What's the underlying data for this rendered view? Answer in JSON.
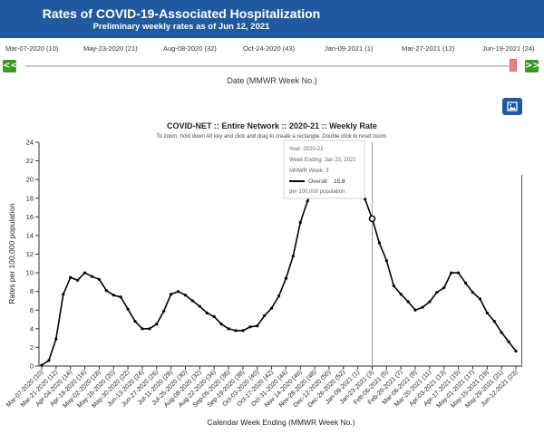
{
  "header": {
    "title": "Rates of COVID-19-Associated Hospitalization",
    "subtitle": "Preliminary weekly rates as of Jun 12, 2021"
  },
  "timeline": {
    "labels": [
      "Mar-07-2020 (10)",
      "May-23-2020 (21)",
      "Aug-08-2020 (32)",
      "Oct-24-2020 (43)",
      "Jan-09-2021 (1)",
      "Mar-27-2021 (12)",
      "Jun-19-2021 (24)"
    ],
    "prev_label": "<<",
    "next_label": ">>",
    "axis_title": "Date (MMWR Week No.)"
  },
  "image_button": {
    "icon": "image-icon"
  },
  "chart_data": {
    "type": "line",
    "title": "COVID-NET :: Entire Network :: 2020-21 :: Weekly Rate",
    "subtitle": "To zoom, hold down Alt key and click and drag to create a rectangle. Double click to reset zoom.",
    "xlabel": "Calendar Week Ending (MMWR Week No.)",
    "ylabel": "Rates per 100,000 population",
    "ylim": [
      0,
      24
    ],
    "yticks": [
      0,
      2,
      4,
      6,
      8,
      10,
      12,
      14,
      16,
      18,
      20,
      22,
      24
    ],
    "x": [
      "Mar-07-2020 (10)",
      "Mar-14-2020 (11)",
      "Mar-21-2020 (12)",
      "Mar-28-2020 (13)",
      "Apr-04-2020 (14)",
      "Apr-11-2020 (15)",
      "Apr-18-2020 (16)",
      "Apr-25-2020 (17)",
      "May-02-2020 (18)",
      "May-09-2020 (19)",
      "May-16-2020 (20)",
      "May-23-2020 (21)",
      "May-30-2020 (22)",
      "Jun-06-2020 (23)",
      "Jun-13-2020 (24)",
      "Jun-20-2020 (25)",
      "Jun-27-2020 (26)",
      "Jul-04-2020 (27)",
      "Jul-11-2020 (28)",
      "Jul-18-2020 (29)",
      "Jul-25-2020 (30)",
      "Aug-01-2020 (31)",
      "Aug-08-2020 (32)",
      "Aug-15-2020 (33)",
      "Aug-22-2020 (34)",
      "Aug-29-2020 (35)",
      "Sep-05-2020 (36)",
      "Sep-12-2020 (37)",
      "Sep-19-2020 (38)",
      "Sep-26-2020 (39)",
      "Oct-03-2020 (40)",
      "Oct-10-2020 (41)",
      "Oct-17-2020 (42)",
      "Oct-24-2020 (43)",
      "Oct-31-2020 (44)",
      "Nov-07-2020 (45)",
      "Nov-14-2020 (46)",
      "Nov-21-2020 (47)",
      "Nov-28-2020 (48)",
      "Dec-05-2020 (49)",
      "Dec-12-2020 (50)",
      "Dec-19-2020 (51)",
      "Dec-26-2020 (52)",
      "Jan-02-2021 (53)",
      "Jan-09-2021 (1)",
      "Jan-16-2021 (2)",
      "Jan-23-2021 (3)",
      "Jan-30-2021 (4)",
      "Feb-06-2021 (5)",
      "Feb-13-2021 (6)",
      "Feb-20-2021 (7)",
      "Feb-27-2021 (8)",
      "Mar-06-2021 (9)",
      "Mar-13-2021 (10)",
      "Mar-20-2021 (11)",
      "Mar-27-2021 (12)",
      "Apr-03-2021 (13)",
      "Apr-10-2021 (14)",
      "Apr-17-2021 (15)",
      "Apr-24-2021 (16)",
      "May-01-2021 (17)",
      "May-08-2021 (18)",
      "May-15-2021 (19)",
      "May-22-2021 (20)",
      "May-29-2021 (21)",
      "Jun-05-2021 (22)",
      "Jun-12-2021 (23)"
    ],
    "tick_labels": [
      "Mar-07-2020 (10)",
      "Mar-21-2020 (12)",
      "Apr-04-2020 (14)",
      "Apr-18-2020 (16)",
      "May-02-2020 (18)",
      "May-16-2020 (20)",
      "May-30-2020 (22)",
      "Jun-13-2020 (24)",
      "Jun-27-2020 (26)",
      "Jul-11-2020 (28)",
      "Jul-25-2020 (30)",
      "Aug-08-2020 (32)",
      "Aug-22-2020 (34)",
      "Sep-05-2020 (36)",
      "Sep-19-2020 (38)",
      "Oct-03-2020 (40)",
      "Oct-17-2020 (42)",
      "Oct-31-2020 (44)",
      "Nov-14-2020 (46)",
      "Nov-28-2020 (48)",
      "Dec-12-2020 (50)",
      "Dec-26-2020 (52)",
      "Jan-09-2021 (1)",
      "Jan-23-2021 (3)",
      "Feb-06-2021 (5)",
      "Feb-20-2021 (7)",
      "Mar-06-2021 (9)",
      "Mar-20-2021 (11)",
      "Apr-03-2021 (13)",
      "Apr-17-2021 (15)",
      "May-01-2021 (17)",
      "May-15-2021 (19)",
      "May-29-2021 (21)",
      "Jun-12-2021 (23)"
    ],
    "series": [
      {
        "name": "Overall",
        "color": "#000000",
        "values": [
          0.1,
          0.6,
          2.9,
          7.7,
          9.5,
          9.2,
          10.0,
          9.6,
          9.3,
          8.1,
          7.6,
          7.4,
          6.1,
          4.8,
          4.0,
          4.0,
          4.5,
          5.9,
          7.7,
          8.0,
          7.6,
          7.0,
          6.4,
          5.7,
          5.3,
          4.5,
          4.0,
          3.8,
          3.8,
          4.2,
          4.3,
          5.4,
          6.2,
          7.5,
          9.4,
          11.8,
          15.4,
          17.7,
          19.2,
          20.2,
          20.8,
          21.2,
          21.0,
          20.3,
          18.3,
          17.9,
          15.8,
          13.2,
          11.3,
          8.6,
          7.7,
          6.9,
          6.0,
          6.3,
          6.9,
          7.9,
          8.4,
          10.0,
          10.0,
          8.9,
          7.9,
          7.2,
          5.7,
          4.8,
          3.6,
          2.6,
          1.6
        ]
      }
    ],
    "tooltip": {
      "year": "Year: 2020-21",
      "week_ending": "Week Ending: Jan 23, 2021",
      "mmwr_week": "MMWR Week: 3",
      "series_label": "Overall:",
      "series_value": "15.8",
      "units": "per 100,000 population"
    },
    "highlight_index": 46,
    "grid": false,
    "legend": "none"
  }
}
